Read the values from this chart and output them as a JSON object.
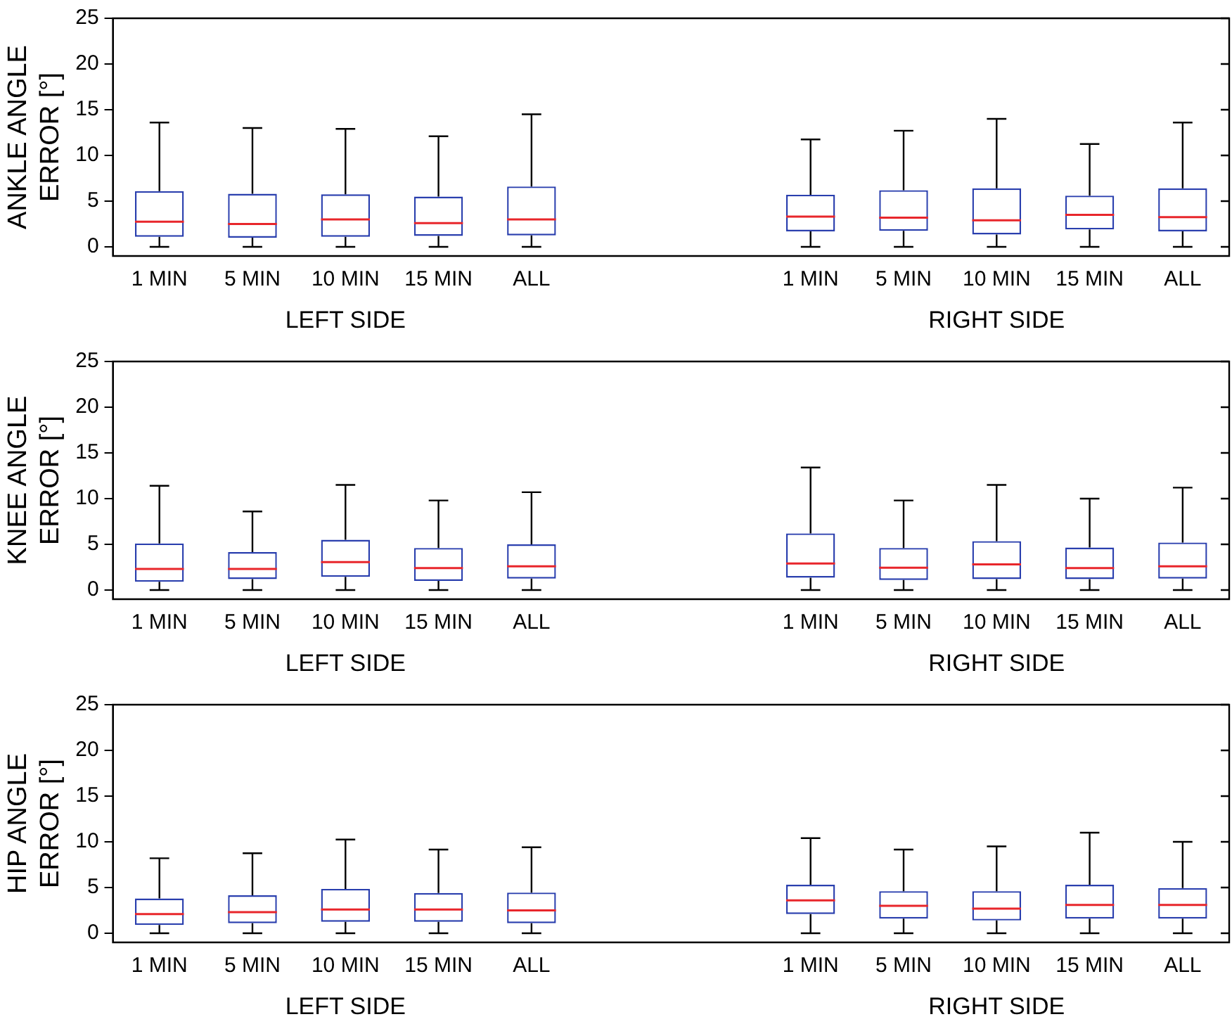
{
  "chart_data": [
    {
      "type": "box",
      "ylabel": "ANKLE ANGLE ERROR [°]",
      "categories": [
        "1 MIN",
        "5 MIN",
        "10 MIN",
        "15 MIN",
        "ALL",
        null,
        null,
        "1 MIN",
        "5 MIN",
        "10 MIN",
        "15 MIN",
        "ALL"
      ],
      "ylim": [
        -1,
        25
      ],
      "yticks": [
        0,
        5,
        10,
        15,
        20,
        25
      ],
      "grid": false,
      "legend": false,
      "annotations": [
        "LEFT SIDE",
        "RIGHT SIDE"
      ],
      "series": [
        {
          "color": "#2a3fae",
          "boxes": [
            {
              "low": 0,
              "q1": 1.1,
              "median": 2.75,
              "q3": 6.1,
              "high": 13.6
            },
            {
              "low": 0,
              "q1": 1.0,
              "median": 2.5,
              "q3": 5.8,
              "high": 13.0
            },
            {
              "low": 0,
              "q1": 1.1,
              "median": 3.0,
              "q3": 5.75,
              "high": 12.9
            },
            {
              "low": 0,
              "q1": 1.2,
              "median": 2.6,
              "q3": 5.5,
              "high": 12.1
            },
            {
              "low": 0,
              "q1": 1.25,
              "median": 3.0,
              "q3": 6.6,
              "high": 14.5
            },
            null,
            null,
            {
              "low": 0,
              "q1": 1.7,
              "median": 3.3,
              "q3": 5.7,
              "high": 11.75
            },
            {
              "low": 0,
              "q1": 1.75,
              "median": 3.2,
              "q3": 6.2,
              "high": 12.7
            },
            {
              "low": 0,
              "q1": 1.35,
              "median": 2.9,
              "q3": 6.4,
              "high": 14.0
            },
            {
              "low": 0,
              "q1": 1.9,
              "median": 3.5,
              "q3": 5.6,
              "high": 11.25
            },
            {
              "low": 0,
              "q1": 1.7,
              "median": 3.25,
              "q3": 6.4,
              "high": 13.6
            }
          ]
        }
      ]
    },
    {
      "type": "box",
      "ylabel": "KNEE ANGLE ERROR [°]",
      "categories": [
        "1 MIN",
        "5 MIN",
        "10 MIN",
        "15 MIN",
        "ALL",
        null,
        null,
        "1 MIN",
        "5 MIN",
        "10 MIN",
        "15 MIN",
        "ALL"
      ],
      "ylim": [
        -1,
        25
      ],
      "yticks": [
        0,
        5,
        10,
        15,
        20,
        25
      ],
      "grid": false,
      "legend": false,
      "annotations": [
        "LEFT SIDE",
        "RIGHT SIDE"
      ],
      "series": [
        {
          "color": "#2a3fae",
          "boxes": [
            {
              "low": 0,
              "q1": 0.9,
              "median": 2.3,
              "q3": 5.1,
              "high": 11.4
            },
            {
              "low": 0,
              "q1": 1.2,
              "median": 2.3,
              "q3": 4.15,
              "high": 8.6
            },
            {
              "low": 0,
              "q1": 1.45,
              "median": 3.05,
              "q3": 5.5,
              "high": 11.5
            },
            {
              "low": 0,
              "q1": 1.0,
              "median": 2.4,
              "q3": 4.6,
              "high": 9.8
            },
            {
              "low": 0,
              "q1": 1.25,
              "median": 2.6,
              "q3": 5.0,
              "high": 10.7
            },
            null,
            null,
            {
              "low": 0,
              "q1": 1.35,
              "median": 2.9,
              "q3": 6.2,
              "high": 13.4
            },
            {
              "low": 0,
              "q1": 1.1,
              "median": 2.45,
              "q3": 4.6,
              "high": 9.8
            },
            {
              "low": 0,
              "q1": 1.2,
              "median": 2.8,
              "q3": 5.35,
              "high": 11.5
            },
            {
              "low": 0,
              "q1": 1.2,
              "median": 2.4,
              "q3": 4.65,
              "high": 10.0
            },
            {
              "low": 0,
              "q1": 1.25,
              "median": 2.6,
              "q3": 5.2,
              "high": 11.2
            }
          ]
        }
      ]
    },
    {
      "type": "box",
      "ylabel": "HIP ANGLE ERROR [°]",
      "categories": [
        "1 MIN",
        "5 MIN",
        "10 MIN",
        "15 MIN",
        "ALL",
        null,
        null,
        "1 MIN",
        "5 MIN",
        "10 MIN",
        "15 MIN",
        "ALL"
      ],
      "ylim": [
        -1,
        25
      ],
      "yticks": [
        0,
        5,
        10,
        15,
        20,
        25
      ],
      "grid": false,
      "legend": false,
      "annotations": [
        "LEFT SIDE",
        "RIGHT SIDE"
      ],
      "series": [
        {
          "color": "#2a3fae",
          "boxes": [
            {
              "low": 0,
              "q1": 0.9,
              "median": 2.1,
              "q3": 3.8,
              "high": 8.2
            },
            {
              "low": 0,
              "q1": 1.1,
              "median": 2.3,
              "q3": 4.15,
              "high": 8.75
            },
            {
              "low": 0,
              "q1": 1.25,
              "median": 2.6,
              "q3": 4.85,
              "high": 10.25
            },
            {
              "low": 0,
              "q1": 1.25,
              "median": 2.6,
              "q3": 4.4,
              "high": 9.15
            },
            {
              "low": 0,
              "q1": 1.1,
              "median": 2.5,
              "q3": 4.45,
              "high": 9.4
            },
            null,
            null,
            {
              "low": 0,
              "q1": 2.1,
              "median": 3.6,
              "q3": 5.3,
              "high": 10.4
            },
            {
              "low": 0,
              "q1": 1.6,
              "median": 3.0,
              "q3": 4.6,
              "high": 9.15
            },
            {
              "low": 0,
              "q1": 1.4,
              "median": 2.7,
              "q3": 4.6,
              "high": 9.5
            },
            {
              "low": 0,
              "q1": 1.6,
              "median": 3.1,
              "q3": 5.3,
              "high": 11.0
            },
            {
              "low": 0,
              "q1": 1.6,
              "median": 3.1,
              "q3": 4.95,
              "high": 10.0
            }
          ]
        }
      ]
    }
  ]
}
